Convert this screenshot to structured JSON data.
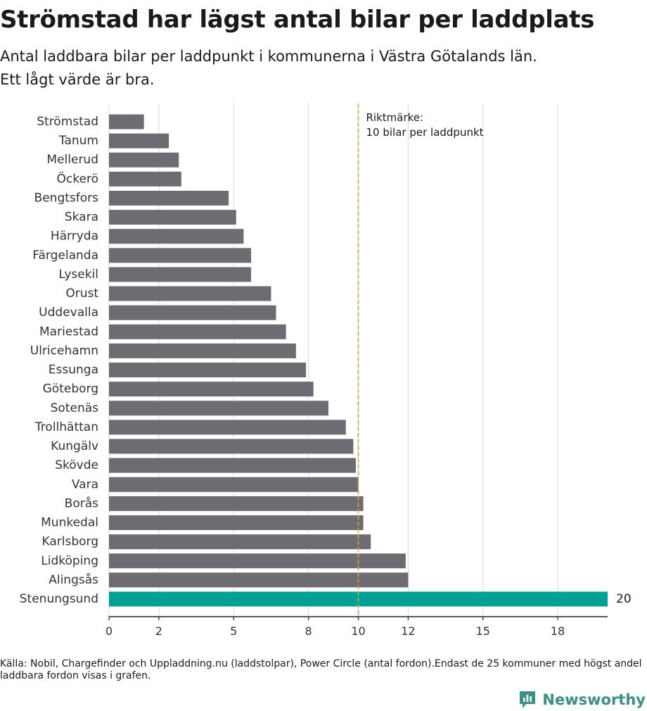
{
  "header": {
    "title": "Strömstad har lägst antal bilar per laddplats",
    "subtitle_line1": "Antal laddbara bilar per laddpunkt i kommunerna i Västra Götalands län.",
    "subtitle_line2": "Ett lågt värde är bra."
  },
  "chart_data": {
    "type": "bar",
    "orientation": "horizontal",
    "categories": [
      "Strömstad",
      "Tanum",
      "Mellerud",
      "Öckerö",
      "Bengtsfors",
      "Skara",
      "Härryda",
      "Färgelanda",
      "Lysekil",
      "Orust",
      "Uddevalla",
      "Mariestad",
      "Ulricehamn",
      "Essunga",
      "Göteborg",
      "Sotenäs",
      "Trollhättan",
      "Kungälv",
      "Skövde",
      "Vara",
      "Borås",
      "Munkedal",
      "Karlsborg",
      "Lidköping",
      "Alingsås",
      "Stenungsund"
    ],
    "values": [
      1.4,
      2.4,
      2.8,
      2.9,
      4.8,
      5.1,
      5.4,
      5.7,
      5.7,
      6.5,
      6.7,
      7.1,
      7.5,
      7.9,
      8.2,
      8.8,
      9.5,
      9.8,
      9.9,
      10.0,
      10.2,
      10.2,
      10.5,
      11.9,
      12.0,
      20
    ],
    "highlight": {
      "category": "Stenungsund",
      "value_label": "20",
      "color": "#00a095"
    },
    "bar_color": "#6d6c72",
    "xlim": [
      0,
      20
    ],
    "x_ticks": [
      0,
      2,
      5,
      8,
      10,
      12,
      15,
      18
    ],
    "gridlines": true,
    "reference_line": {
      "value": 10,
      "label_line1": "Riktmärke:",
      "label_line2": "10 bilar per laddpunkt",
      "color": "#d9a441"
    }
  },
  "footer": {
    "source": "Källa: Nobil, Chargefinder och Uppladdning.nu (laddstolpar), Power Circle (antal fordon).Endast de 25 kommuner med högst andel laddbara fordon visas i grafen.",
    "brand": "Newsworthy",
    "brand_icon": "newsworthy-logo-icon",
    "brand_color": "#3a8f87"
  }
}
